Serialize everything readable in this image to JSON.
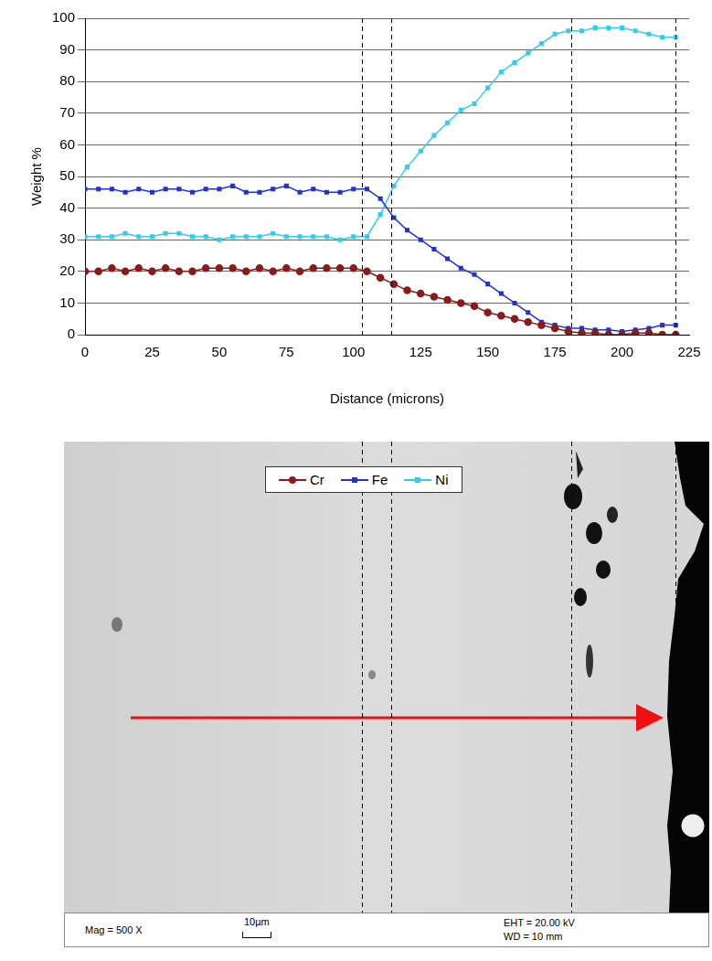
{
  "chart_data": {
    "type": "line",
    "x_label": "Distance (microns)",
    "y_label": "Weight %",
    "x": [
      0,
      5,
      10,
      15,
      20,
      25,
      30,
      35,
      40,
      45,
      50,
      55,
      60,
      65,
      70,
      75,
      80,
      85,
      90,
      95,
      100,
      105,
      110,
      115,
      120,
      125,
      130,
      135,
      140,
      145,
      150,
      155,
      160,
      165,
      170,
      175,
      180,
      185,
      190,
      195,
      200,
      205,
      210,
      215,
      220
    ],
    "series": [
      {
        "name": "Cr",
        "color": "#8b1a1a",
        "marker": "circle",
        "line_style": "solid",
        "values": [
          20,
          20,
          21,
          20,
          21,
          20,
          21,
          20,
          20,
          21,
          21,
          21,
          20,
          21,
          20,
          21,
          20,
          21,
          21,
          21,
          21,
          20,
          18,
          16,
          14,
          13,
          12,
          11,
          10,
          9,
          7,
          6,
          5,
          4,
          3,
          2,
          1,
          0.5,
          0.5,
          0,
          0,
          0.5,
          0.5,
          0,
          0
        ]
      },
      {
        "name": "Fe",
        "color": "#2233cc",
        "marker": "square",
        "line_style": "solid",
        "values": [
          46,
          46,
          46,
          45,
          46,
          45,
          46,
          46,
          45,
          46,
          46,
          47,
          45,
          45,
          46,
          47,
          45,
          46,
          45,
          45,
          46,
          46,
          43,
          37,
          33,
          30,
          27,
          24,
          21,
          19,
          16,
          13,
          10,
          7,
          4,
          3,
          2,
          2,
          1.5,
          1.5,
          1,
          1.5,
          2,
          3,
          3
        ]
      },
      {
        "name": "Ni",
        "color": "#33ccee",
        "marker": "square",
        "line_style": "solid",
        "values": [
          31,
          31,
          31,
          32,
          31,
          31,
          32,
          32,
          31,
          31,
          30,
          31,
          31,
          31,
          32,
          31,
          31,
          31,
          31,
          30,
          31,
          31,
          38,
          47,
          53,
          58,
          63,
          67,
          71,
          73,
          78,
          83,
          86,
          89,
          92,
          95,
          96,
          96,
          97,
          97,
          97,
          96,
          95,
          94,
          94
        ]
      }
    ],
    "xlim": [
      0,
      225
    ],
    "xticks": [
      0,
      25,
      50,
      75,
      100,
      125,
      150,
      175,
      200,
      225
    ],
    "ylim": [
      0,
      100
    ],
    "yticks": [
      0,
      10,
      20,
      30,
      40,
      50,
      60,
      70,
      80,
      90,
      100
    ],
    "grid": true,
    "legend": "bottom",
    "vertical_lines": [
      103,
      114,
      181,
      220
    ]
  },
  "image": {
    "footer": {
      "mag": "Mag = 500 X",
      "scale_bar": "10µm",
      "eht": "EHT = 20.00 kV",
      "wd": "WD = 10 mm"
    }
  }
}
